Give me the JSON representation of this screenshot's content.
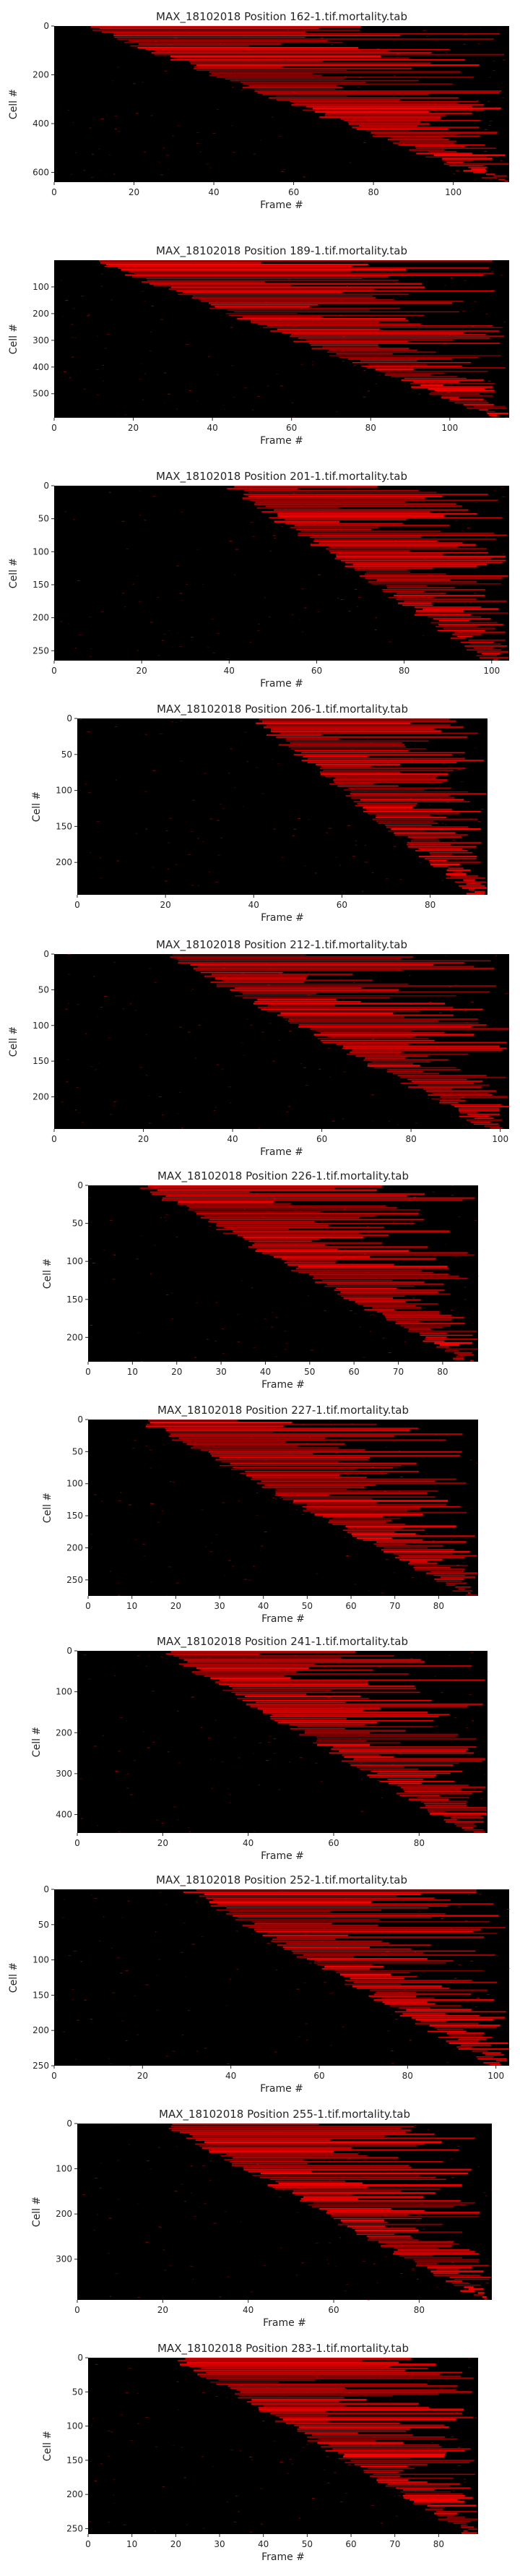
{
  "colors": {
    "background": "#000000",
    "signal": "#ff0000",
    "text": "#262626"
  },
  "chart_data": [
    {
      "type": "heatmap",
      "title": "MAX_18102018 Position 162-1.tif.mortality.tab",
      "xlabel": "Frame #",
      "ylabel": "Cell #",
      "xlim": [
        0,
        114
      ],
      "ylim": [
        640,
        0
      ],
      "x_ticks": [
        0,
        20,
        40,
        60,
        80,
        100
      ],
      "y_ticks": [
        0,
        200,
        400,
        600
      ],
      "grid": false,
      "onset_frame_first_cell": 8,
      "onset_frame_last_cell": 112
    },
    {
      "type": "heatmap",
      "title": "MAX_18102018 Position 189-1.tif.mortality.tab",
      "xlabel": "Frame #",
      "ylabel": "Cell #",
      "xlim": [
        0,
        115
      ],
      "ylim": [
        590,
        0
      ],
      "x_ticks": [
        0,
        20,
        40,
        60,
        80,
        100
      ],
      "y_ticks": [
        100,
        200,
        300,
        400,
        500
      ],
      "grid": false,
      "onset_frame_first_cell": 10,
      "onset_frame_last_cell": 112
    },
    {
      "type": "heatmap",
      "title": "MAX_18102018 Position 201-1.tif.mortality.tab",
      "xlabel": "Frame #",
      "ylabel": "Cell #",
      "xlim": [
        0,
        104
      ],
      "ylim": [
        265,
        0
      ],
      "x_ticks": [
        0,
        20,
        40,
        60,
        80,
        100
      ],
      "y_ticks": [
        0,
        50,
        100,
        150,
        200,
        250
      ],
      "grid": false,
      "onset_frame_first_cell": 40,
      "onset_frame_last_cell": 100
    },
    {
      "type": "heatmap",
      "title": "MAX_18102018 Position 206-1.tif.mortality.tab",
      "xlabel": "Frame #",
      "ylabel": "Cell #",
      "xlim": [
        0,
        93
      ],
      "ylim": [
        245,
        0
      ],
      "x_ticks": [
        0,
        20,
        40,
        60,
        80
      ],
      "y_ticks": [
        0,
        50,
        100,
        150,
        200
      ],
      "grid": false,
      "onset_frame_first_cell": 40,
      "onset_frame_last_cell": 90
    },
    {
      "type": "heatmap",
      "title": "MAX_18102018 Position 212-1.tif.mortality.tab",
      "xlabel": "Frame #",
      "ylabel": "Cell #",
      "xlim": [
        0,
        102
      ],
      "ylim": [
        245,
        0
      ],
      "x_ticks": [
        0,
        20,
        40,
        60,
        80,
        100
      ],
      "y_ticks": [
        0,
        50,
        100,
        150,
        200
      ],
      "grid": false,
      "onset_frame_first_cell": 25,
      "onset_frame_last_cell": 98
    },
    {
      "type": "heatmap",
      "title": "MAX_18102018 Position 226-1.tif.mortality.tab",
      "xlabel": "Frame #",
      "ylabel": "Cell #",
      "xlim": [
        0,
        88
      ],
      "ylim": [
        232,
        0
      ],
      "x_ticks": [
        0,
        10,
        20,
        30,
        40,
        50,
        60,
        70,
        80
      ],
      "y_ticks": [
        0,
        50,
        100,
        150,
        200
      ],
      "grid": false,
      "onset_frame_first_cell": 12,
      "onset_frame_last_cell": 85
    },
    {
      "type": "heatmap",
      "title": "MAX_18102018 Position 227-1.tif.mortality.tab",
      "xlabel": "Frame #",
      "ylabel": "Cell #",
      "xlim": [
        0,
        89
      ],
      "ylim": [
        275,
        0
      ],
      "x_ticks": [
        0,
        10,
        20,
        30,
        40,
        50,
        60,
        70,
        80
      ],
      "y_ticks": [
        0,
        50,
        100,
        150,
        200,
        250
      ],
      "grid": false,
      "onset_frame_first_cell": 12,
      "onset_frame_last_cell": 87
    },
    {
      "type": "heatmap",
      "title": "MAX_18102018 Position 241-1.tif.mortality.tab",
      "xlabel": "Frame #",
      "ylabel": "Cell #",
      "xlim": [
        0,
        96
      ],
      "ylim": [
        445,
        0
      ],
      "x_ticks": [
        0,
        20,
        40,
        60,
        80
      ],
      "y_ticks": [
        0,
        100,
        200,
        300,
        400
      ],
      "grid": false,
      "onset_frame_first_cell": 20,
      "onset_frame_last_cell": 92
    },
    {
      "type": "heatmap",
      "title": "MAX_18102018 Position 252-1.tif.mortality.tab",
      "xlabel": "Frame #",
      "ylabel": "Cell #",
      "xlim": [
        0,
        103
      ],
      "ylim": [
        250,
        0
      ],
      "x_ticks": [
        0,
        20,
        40,
        60,
        80,
        100
      ],
      "y_ticks": [
        0,
        50,
        100,
        150,
        200,
        250
      ],
      "grid": false,
      "onset_frame_first_cell": 30,
      "onset_frame_last_cell": 100
    },
    {
      "type": "heatmap",
      "title": "MAX_18102018 Position 255-1.tif.mortality.tab",
      "xlabel": "Frame #",
      "ylabel": "Cell #",
      "xlim": [
        0,
        97
      ],
      "ylim": [
        390,
        0
      ],
      "x_ticks": [
        0,
        20,
        40,
        60,
        80
      ],
      "y_ticks": [
        0,
        100,
        200,
        300
      ],
      "grid": false,
      "onset_frame_first_cell": 20,
      "onset_frame_last_cell": 95
    },
    {
      "type": "heatmap",
      "title": "MAX_18102018 Position 283-1.tif.mortality.tab",
      "xlabel": "Frame #",
      "ylabel": "Cell #",
      "xlim": [
        0,
        89
      ],
      "ylim": [
        258,
        0
      ],
      "x_ticks": [
        0,
        10,
        20,
        30,
        40,
        50,
        60,
        70,
        80
      ],
      "y_ticks": [
        0,
        50,
        100,
        150,
        200,
        250
      ],
      "grid": false,
      "onset_frame_first_cell": 20,
      "onset_frame_last_cell": 87
    }
  ]
}
